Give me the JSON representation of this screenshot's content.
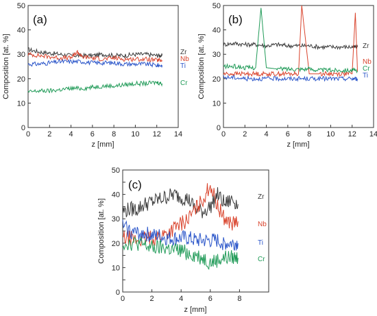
{
  "chart_data": [
    {
      "type": "line",
      "panel_label": "(a)",
      "xlabel": "z [mm]",
      "ylabel": "Composition [at. %]",
      "xlim": [
        0,
        14
      ],
      "ylim": [
        0,
        50
      ],
      "xticks": [
        0,
        2,
        4,
        6,
        8,
        10,
        12,
        14
      ],
      "yticks": [
        0,
        10,
        20,
        30,
        40,
        50
      ],
      "legend": "right",
      "series": [
        {
          "name": "Zr",
          "color": "#3a3a3a",
          "x": [
            0,
            1,
            2,
            3,
            4,
            5,
            6,
            7,
            8,
            9,
            10,
            11,
            12,
            12.5
          ],
          "y": [
            32,
            31,
            30.5,
            30,
            29.5,
            29.5,
            29.5,
            30,
            29.5,
            29.5,
            30,
            30,
            29.5,
            29.5
          ]
        },
        {
          "name": "Nb",
          "color": "#d9432c",
          "x": [
            0,
            1,
            2,
            3,
            4,
            4.6,
            5,
            6,
            7,
            8,
            9,
            10,
            11,
            12,
            12.5
          ],
          "y": [
            30,
            29.5,
            29,
            28.5,
            28.5,
            31,
            29,
            28.5,
            28,
            28.5,
            28,
            28,
            28,
            27.5,
            27.5
          ]
        },
        {
          "name": "Ti",
          "color": "#2a55c9",
          "x": [
            0,
            1,
            2,
            3,
            4,
            5,
            6,
            7,
            8,
            9,
            10,
            11,
            12,
            12.5
          ],
          "y": [
            26,
            26,
            26.5,
            27,
            27,
            27,
            26.5,
            26.5,
            26.5,
            26,
            26,
            26,
            25.5,
            25.5
          ]
        },
        {
          "name": "Cr",
          "color": "#1f9a57",
          "x": [
            0,
            1,
            2,
            3,
            4,
            5,
            6,
            7,
            8,
            9,
            10,
            11,
            12,
            12.5
          ],
          "y": [
            14.5,
            15,
            15,
            15.5,
            16,
            16,
            16.5,
            17,
            17,
            17.5,
            18,
            18,
            18.5,
            18
          ]
        }
      ]
    },
    {
      "type": "line",
      "panel_label": "(b)",
      "xlabel": "z [mm]",
      "ylabel": "Composition [at. %]",
      "xlim": [
        0,
        14
      ],
      "ylim": [
        0,
        50
      ],
      "xticks": [
        0,
        2,
        4,
        6,
        8,
        10,
        12,
        14
      ],
      "yticks": [
        0,
        10,
        20,
        30,
        40,
        50
      ],
      "legend": "right",
      "series": [
        {
          "name": "Zr",
          "color": "#3a3a3a",
          "x": [
            0,
            1,
            2,
            3,
            4,
            5,
            6,
            7,
            8,
            9,
            10,
            11,
            12,
            12.5
          ],
          "y": [
            34,
            34.5,
            34,
            34,
            33.5,
            34,
            33.5,
            33.5,
            33.5,
            33,
            33,
            33,
            33,
            33
          ]
        },
        {
          "name": "Nb",
          "color": "#d9432c",
          "x": [
            0,
            1,
            2,
            3,
            4,
            5,
            6,
            7,
            7.3,
            8,
            9,
            10,
            11,
            12,
            12.3,
            12.5
          ],
          "y": [
            22,
            22,
            22,
            22,
            22,
            22,
            22,
            22,
            50,
            22,
            22,
            22,
            22,
            22,
            47,
            23
          ]
        },
        {
          "name": "Cr",
          "color": "#1f9a57",
          "x": [
            0,
            1,
            2,
            3,
            3.5,
            4,
            5,
            6,
            7,
            8,
            9,
            10,
            11,
            12,
            12.5
          ],
          "y": [
            25,
            25,
            24.5,
            24.5,
            49,
            24.5,
            24,
            24,
            24,
            24,
            23.5,
            23.5,
            23.5,
            23.5,
            23
          ]
        },
        {
          "name": "Ti",
          "color": "#2a55c9",
          "x": [
            0,
            1,
            2,
            3,
            4,
            5,
            6,
            7,
            8,
            9,
            10,
            11,
            12,
            12.5
          ],
          "y": [
            20.5,
            20.5,
            20,
            20,
            20,
            20,
            20,
            20,
            20,
            20,
            20,
            20,
            20,
            20
          ]
        }
      ]
    },
    {
      "type": "line",
      "panel_label": "(c)",
      "xlabel": "z [mm]",
      "ylabel": "Composition [at. %]",
      "xlim": [
        0,
        10
      ],
      "ylim": [
        0,
        50
      ],
      "xticks": [
        0,
        2,
        4,
        6,
        8
      ],
      "yticks": [
        0,
        5,
        10,
        15,
        20,
        25,
        30,
        35,
        40,
        45,
        50
      ],
      "legend": "right",
      "series": [
        {
          "name": "Zr",
          "color": "#3a3a3a",
          "x": [
            0,
            0.5,
            1,
            1.5,
            2,
            2.5,
            3,
            3.5,
            4,
            4.5,
            5,
            5.5,
            6,
            6.5,
            7,
            7.5,
            7.9
          ],
          "y": [
            33,
            34,
            34,
            36,
            37,
            38,
            39,
            40,
            39,
            38,
            34,
            33,
            35,
            40,
            36,
            38,
            36
          ]
        },
        {
          "name": "Nb",
          "color": "#d9432c",
          "x": [
            0,
            0.5,
            1,
            1.5,
            2,
            2.5,
            3,
            3.5,
            4,
            4.5,
            5,
            5.5,
            6,
            6.5,
            7,
            7.5,
            7.9
          ],
          "y": [
            22,
            22,
            21,
            22,
            22,
            23,
            24,
            26,
            28,
            30,
            34,
            38,
            44,
            35,
            30,
            28,
            29
          ]
        },
        {
          "name": "Ti",
          "color": "#2a55c9",
          "x": [
            0,
            0.5,
            1,
            1.5,
            2,
            2.5,
            3,
            3.5,
            4,
            4.5,
            5,
            5.5,
            6,
            6.5,
            7,
            7.5,
            7.9
          ],
          "y": [
            27,
            25,
            24,
            24,
            23,
            23,
            22,
            22,
            22,
            22,
            21,
            21,
            21,
            21,
            20,
            20,
            20
          ]
        },
        {
          "name": "Cr",
          "color": "#1f9a57",
          "x": [
            0,
            0.5,
            1,
            1.5,
            2,
            2.5,
            3,
            3.5,
            4,
            4.5,
            5,
            5.5,
            6,
            6.5,
            7,
            7.5,
            7.9
          ],
          "y": [
            20,
            20,
            20,
            19,
            18,
            18,
            18,
            17,
            17,
            16,
            15,
            14,
            12,
            13,
            14,
            14,
            14
          ]
        }
      ]
    }
  ]
}
